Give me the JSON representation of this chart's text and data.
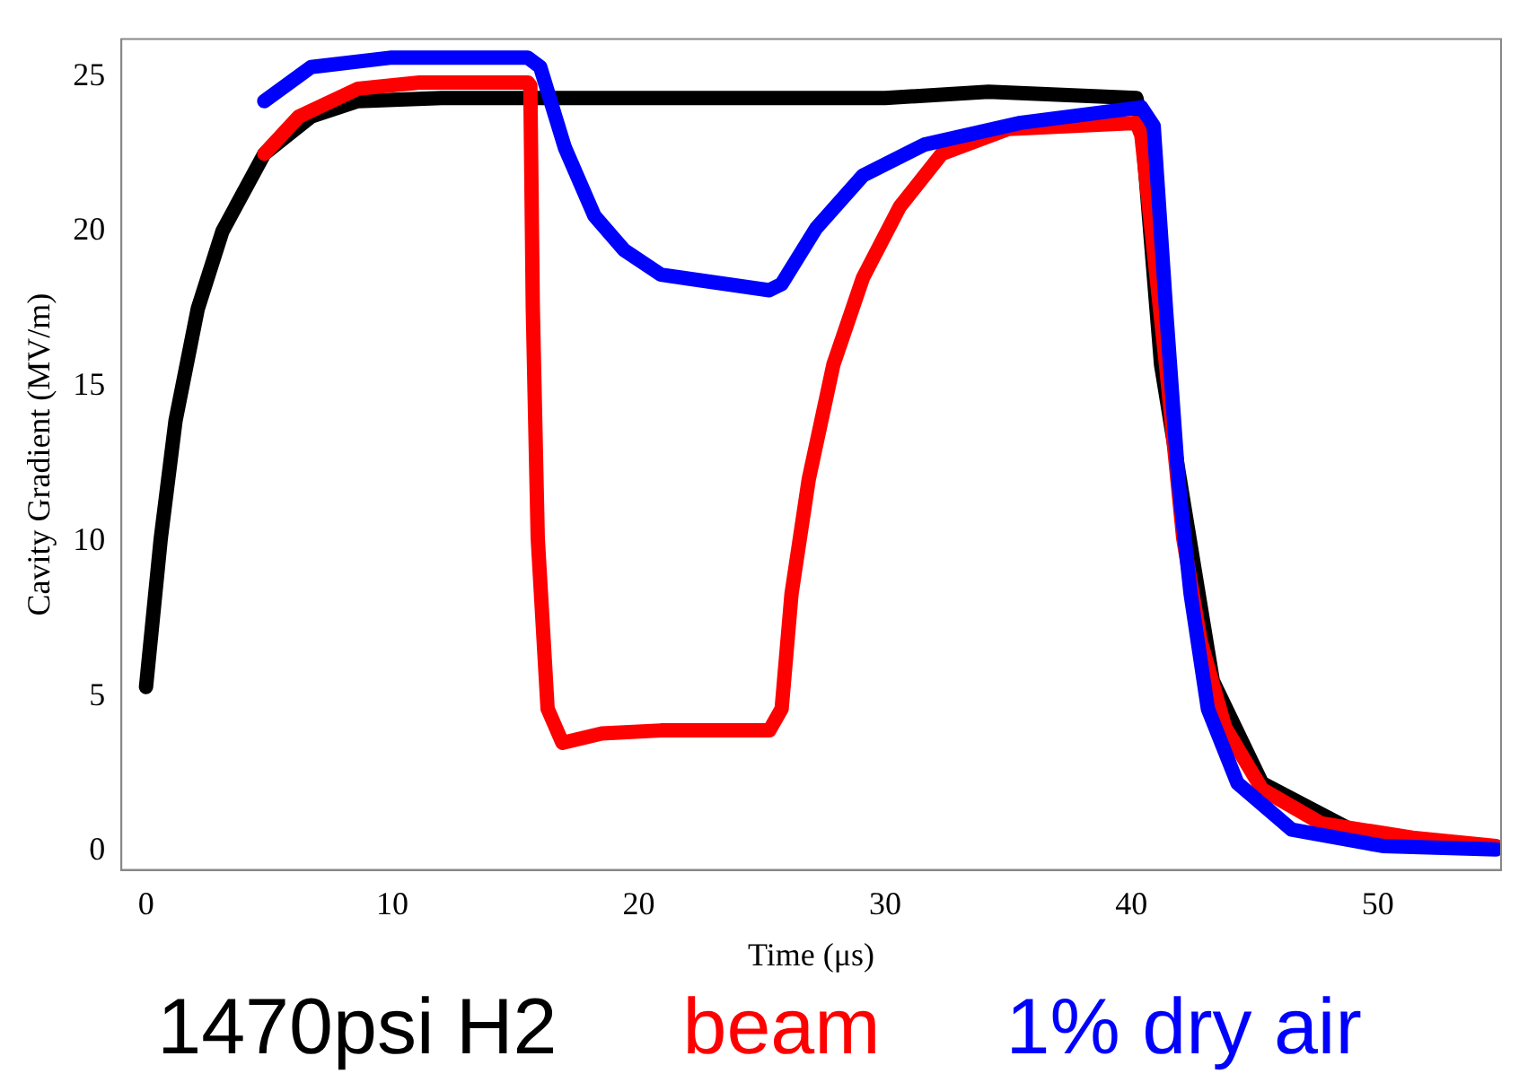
{
  "chart_data": {
    "type": "line",
    "xlabel": "Time (μs)",
    "ylabel": "Cavity Gradient (MV/m)",
    "xlim": [
      -1,
      55
    ],
    "ylim": [
      -0.6,
      26.2
    ],
    "xticks": [
      0,
      10,
      20,
      30,
      40,
      50
    ],
    "yticks": [
      0,
      5,
      10,
      15,
      20,
      25
    ],
    "grid": false,
    "legend": "bottom",
    "series": [
      {
        "name": "1470psi H2",
        "color": "#000000",
        "x": [
          0,
          0.6,
          1.2,
          2.1,
          3.1,
          4.8,
          6.7,
          8.6,
          12,
          20,
          30,
          34.2,
          40.2,
          40.4,
          41.2,
          43.3,
          45.3,
          48.9
        ],
        "values": [
          5.3,
          10.1,
          13.9,
          17.5,
          20,
          22.5,
          23.7,
          24.2,
          24.3,
          24.3,
          24.3,
          24.5,
          24.3,
          23.5,
          15.7,
          5.5,
          2.2,
          0.7
        ]
      },
      {
        "name": "beam",
        "color": "#ff0000",
        "x": [
          4.8,
          6.2,
          8.6,
          11.1,
          15.5,
          15.6,
          15.7,
          15.9,
          16.3,
          16.9,
          18.5,
          20.9,
          25.3,
          25.8,
          26.2,
          26.9,
          27.9,
          29.1,
          30.6,
          32.3,
          35,
          40.2,
          40.4,
          41.4,
          42.1,
          42.8,
          43.8,
          45.3,
          47.7,
          51.4,
          54.8
        ],
        "values": [
          22.5,
          23.7,
          24.6,
          24.8,
          24.8,
          24.7,
          17.5,
          10.1,
          4.6,
          3.5,
          3.8,
          3.9,
          3.9,
          4.6,
          8.3,
          12,
          15.7,
          18.5,
          20.8,
          22.5,
          23.3,
          23.5,
          23.1,
          15.7,
          10.1,
          6.8,
          4,
          2,
          0.9,
          0.44,
          0.17
        ]
      },
      {
        "name": "1% dry air",
        "color": "#0000ff",
        "x": [
          4.8,
          6.7,
          9.9,
          15.5,
          16,
          17,
          18.2,
          19.4,
          20.9,
          25.3,
          25.8,
          27.2,
          29.1,
          31.6,
          35.5,
          40.4,
          40.9,
          41.4,
          41.9,
          42.4,
          43.1,
          44.3,
          46.5,
          50.2,
          54.8
        ],
        "values": [
          24.2,
          25.3,
          25.6,
          25.6,
          25.3,
          22.7,
          20.5,
          19.4,
          18.6,
          18.1,
          18.3,
          20.1,
          21.8,
          22.8,
          23.5,
          24,
          23.4,
          17.5,
          12,
          8.3,
          4.6,
          2.2,
          0.7,
          0.17,
          0.06
        ]
      }
    ]
  }
}
